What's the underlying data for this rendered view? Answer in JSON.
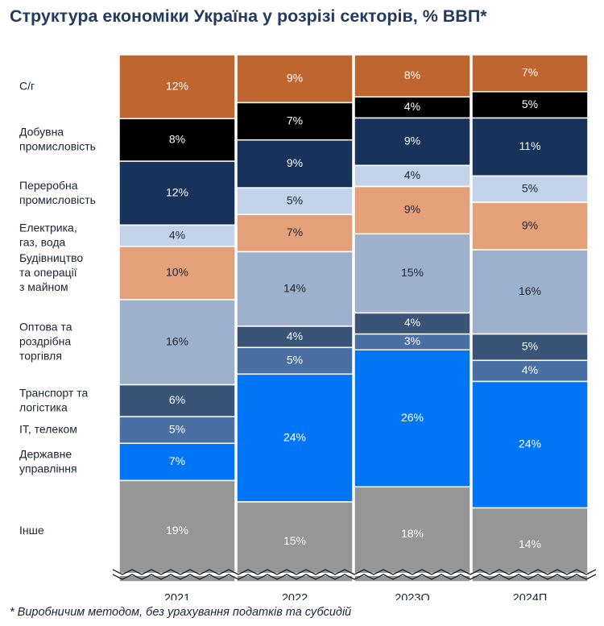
{
  "chart_data": {
    "type": "bar",
    "stacked": true,
    "title": "Структура економіки Україна у розрізі секторів, % ВВП*",
    "footnote": "* Виробничим методом, без урахування податків та субсидій",
    "categories": [
      "2021",
      "2022",
      "2023О",
      "2024П"
    ],
    "series": [
      {
        "name": "С/г",
        "label_lines": [
          "С/г"
        ],
        "color": "#bf6530",
        "text_color": "#ffffff",
        "values": [
          12,
          9,
          8,
          7
        ]
      },
      {
        "name": "Добувна промисловість",
        "label_lines": [
          "Добувна",
          "промисловість"
        ],
        "color": "#000000",
        "text_color": "#ffffff",
        "values": [
          8,
          7,
          4,
          5
        ]
      },
      {
        "name": "Переробна промисловість",
        "label_lines": [
          "Переробна",
          "промисловість"
        ],
        "color": "#17335c",
        "text_color": "#ffffff",
        "values": [
          12,
          9,
          9,
          11
        ]
      },
      {
        "name": "Електрика, газ, вода",
        "label_lines": [
          "Електрика,",
          "газ, вода"
        ],
        "color": "#c2d3ea",
        "text_color": "#1c2333",
        "values": [
          4,
          5,
          4,
          5
        ]
      },
      {
        "name": "Будівництво та операції з майном",
        "label_lines": [
          "Будівництво",
          "та операції",
          "з майном"
        ],
        "color": "#e3a079",
        "text_color": "#1c2333",
        "values": [
          10,
          7,
          9,
          9
        ]
      },
      {
        "name": "Оптова та роздрібна торгівля",
        "label_lines": [
          "Оптова та",
          "роздрібна",
          "торгівля"
        ],
        "color": "#9eb1cc",
        "text_color": "#1c2333",
        "values": [
          16,
          14,
          15,
          16
        ]
      },
      {
        "name": "Транспорт та логістика",
        "label_lines": [
          "Транспорт та",
          "логістика"
        ],
        "color": "#3a5478",
        "text_color": "#ffffff",
        "values": [
          6,
          4,
          4,
          5
        ]
      },
      {
        "name": "IT, телеком",
        "label_lines": [
          "IT, телеком"
        ],
        "color": "#4a6fa2",
        "text_color": "#ffffff",
        "values": [
          5,
          5,
          3,
          4
        ]
      },
      {
        "name": "Державне управління",
        "label_lines": [
          "Державне",
          "управління"
        ],
        "color": "#0075f6",
        "text_color": "#ffffff",
        "values": [
          7,
          24,
          26,
          24
        ]
      },
      {
        "name": "Інше",
        "label_lines": [
          "Інше"
        ],
        "color": "#969696",
        "text_color": "#ffffff",
        "values": [
          19,
          15,
          18,
          14
        ]
      }
    ],
    "value_suffix": "%",
    "y_axis_broken": true,
    "legend": "left"
  }
}
